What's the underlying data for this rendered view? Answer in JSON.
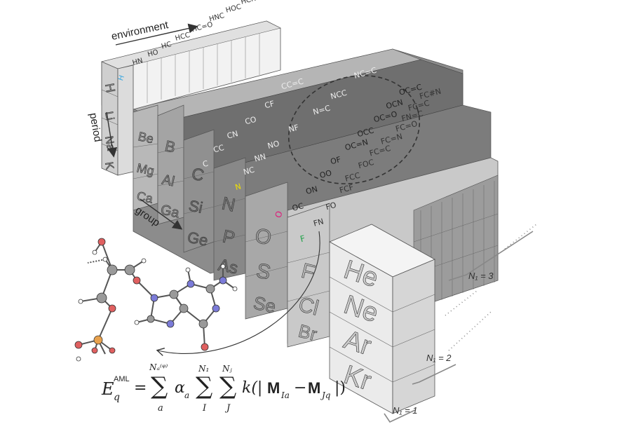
{
  "axes": {
    "environment": "environment",
    "period": "period",
    "group": "group"
  },
  "front_column": [
    "He",
    "Ne",
    "Ar",
    "Kr"
  ],
  "halogen_column": [
    "F",
    "Cl",
    "Br"
  ],
  "chalcogen_column": [
    "O",
    "S",
    "Se"
  ],
  "pnictogen_column": [
    "N",
    "P",
    "As"
  ],
  "tetrel_column": [
    "C",
    "Si",
    "Ge"
  ],
  "boron_column": [
    "B",
    "Al",
    "Ga"
  ],
  "alkaline_column": [
    "Be",
    "Mg",
    "Ca"
  ],
  "alkali_column": [
    "H",
    "Li",
    "Na",
    "K"
  ],
  "fluorine_envs": [
    "F",
    "FN",
    "FO",
    "FCF",
    "FCC",
    "FOC",
    "FC=C",
    "FC=N",
    "FC=O",
    "FN=C",
    "FC=C",
    "FC#N"
  ],
  "oxygen_envs": [
    "O",
    "OC",
    "ON",
    "OO",
    "OF",
    "OC=N",
    "OCC",
    "OC=O",
    "OCN",
    "OC=C"
  ],
  "nitrogen_envs": [
    "N",
    "NC",
    "NN",
    "NO",
    "NF",
    "N=C",
    "NCC",
    "NC=C"
  ],
  "carbon_envs": [
    "C",
    "CC",
    "CN",
    "CO",
    "CF",
    "CC=C"
  ],
  "hydrogen_envs": [
    "H",
    "HN",
    "HO",
    "HC",
    "HCC",
    "HC=O",
    "HNC",
    "HOC",
    "HCN"
  ],
  "ni_labels": [
    "N₁ = 1",
    "N₁ = 2",
    "N₁ = 3"
  ],
  "equation": {
    "lhs": "E",
    "lhs_sub": "q",
    "lhs_sup": "AML",
    "body": "= Σ αₐ Σ Σ k(|M₁ₐ − Mⱼₑ|)",
    "sum1_top": "Nₐ⁽ᵠ⁾",
    "sum1_bot": "a",
    "alpha": "α",
    "alpha_sub": "a",
    "sum2_top": "N₁",
    "sum2_bot": "I",
    "sum3_top": "Nⱼ",
    "sum3_bot": "J",
    "kernel": "k(|",
    "m1": "M",
    "m1_sub": "Ia",
    "minus": "−",
    "m2": "M",
    "m2_sub": "Jq",
    "close": "|)"
  },
  "colors": {
    "front_face": "#e9e9e9",
    "dark_face": "#7a7a7a",
    "mid_face": "#a8a8a8",
    "hydrogen_blue": "#3aa7e0",
    "oxygen_pink": "#e0197a",
    "nitrogen_yellow": "#f0e000",
    "fluorine_green": "#22a34a",
    "atom_red": "#e06060",
    "atom_blue": "#7b7bd8",
    "atom_orange": "#e8a14c",
    "atom_gray": "#9a9a9a"
  }
}
